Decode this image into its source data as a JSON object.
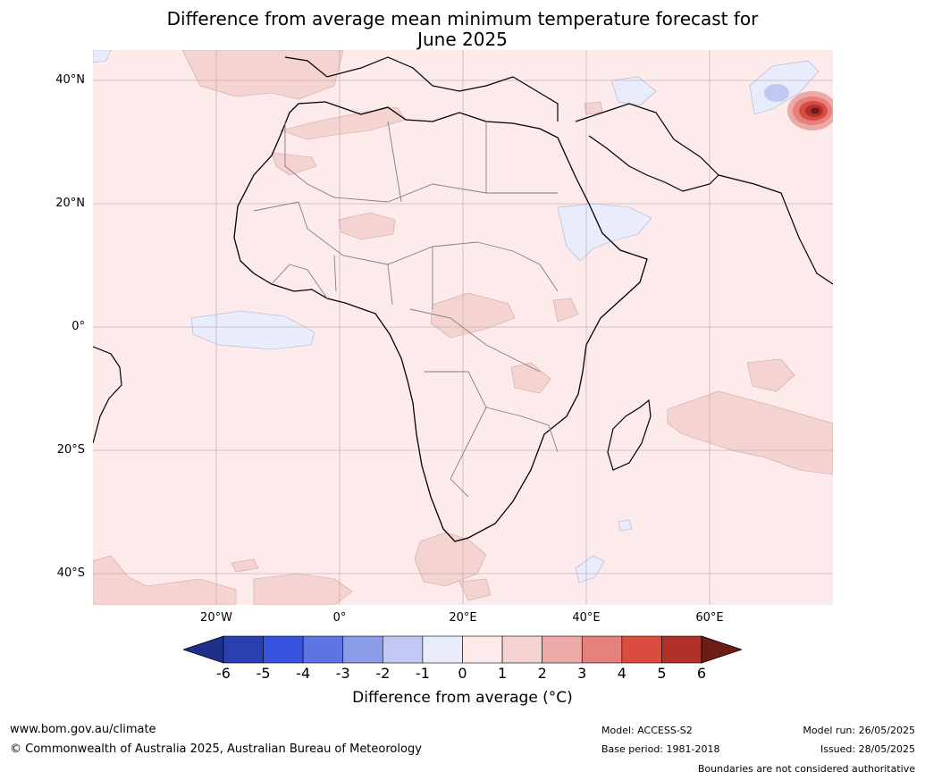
{
  "title": {
    "line1": "Difference from average mean minimum temperature forecast for",
    "line2": "June 2025"
  },
  "axes": {
    "latitude_labels": [
      "40°N",
      "20°N",
      "0°",
      "20°S",
      "40°S"
    ],
    "longitude_labels": [
      "20°W",
      "0°",
      "20°E",
      "40°E",
      "60°E"
    ]
  },
  "colorbar": {
    "ticks": [
      "-6",
      "-5",
      "-4",
      "-3",
      "-2",
      "-1",
      "0",
      "1",
      "2",
      "3",
      "4",
      "5",
      "6"
    ],
    "colors": [
      "#1f2f8c",
      "#2a3fb0",
      "#3552e0",
      "#5d74e2",
      "#8a9be8",
      "#c1c8f3",
      "#e9ecfb",
      "#fcebea",
      "#f4d3d1",
      "#ecaaa6",
      "#e5807b",
      "#db4b40",
      "#b0302a",
      "#6e1a15"
    ],
    "label": "Difference from average (°C)"
  },
  "footer": {
    "website": "www.bom.gov.au/climate",
    "copyright": "© Commonwealth of Australia 2025, Australian Bureau of Meteorology",
    "model": "Model: ACCESS-S2",
    "base_period": "Base period: 1981-2018",
    "model_run": "Model run: 26/05/2025",
    "issued": "Issued: 28/05/2025",
    "disclaimer": "Boundaries are not considered authoritative"
  },
  "map": {
    "region": "Africa",
    "ocean_color": "#fcebea",
    "warm_color": "#f4d3d1",
    "cool_color": "#e9ecfb",
    "grid": true
  }
}
